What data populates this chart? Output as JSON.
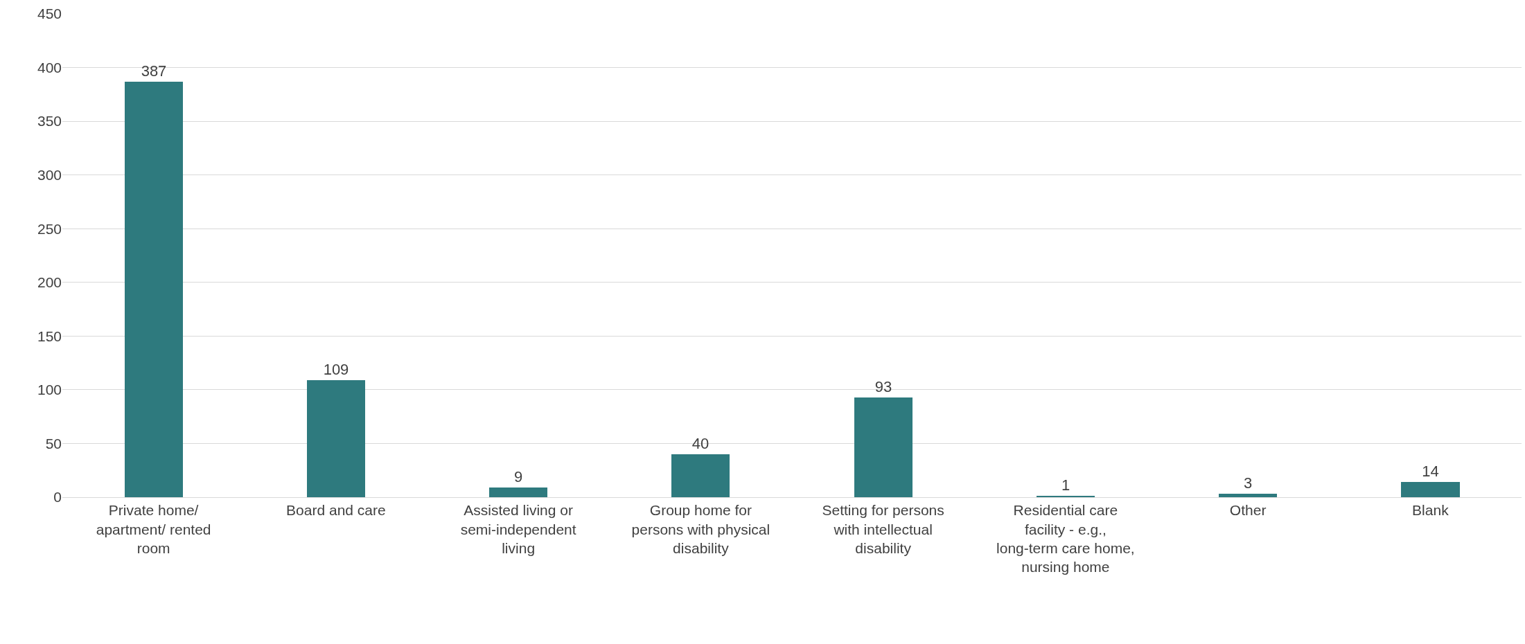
{
  "chart_data": {
    "type": "bar",
    "categories": [
      "Private home/ apartment/ rented room",
      "Board and care",
      "Assisted living or semi-independent living",
      "Group home for persons with physical disability",
      "Setting for persons with intellectual disability",
      "Residential care facility - e.g., long-term care home, nursing home",
      "Other",
      "Blank"
    ],
    "values": [
      387,
      109,
      9,
      40,
      93,
      1,
      3,
      14
    ],
    "color": "#2e7a7e",
    "ylim": [
      0,
      450
    ],
    "yticks": [
      0,
      50,
      100,
      150,
      200,
      250,
      300,
      350,
      400,
      450
    ],
    "grid": "y",
    "data_labels": true
  }
}
